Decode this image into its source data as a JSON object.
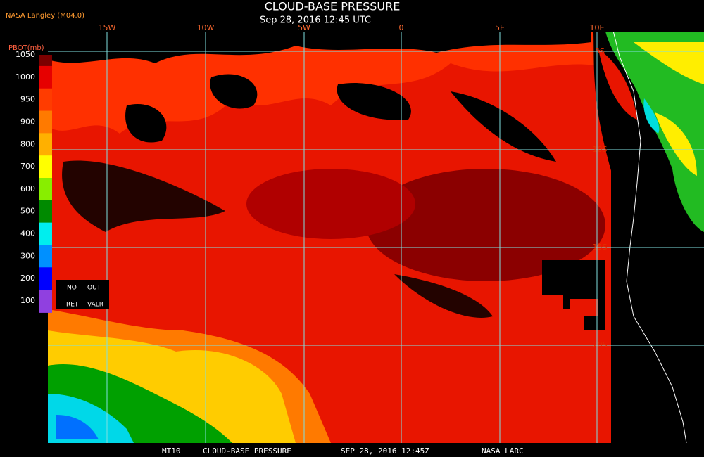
{
  "header": {
    "source": "NASA Langley (M04.0)",
    "title": "CLOUD-BASE PRESSURE",
    "subtitle": "Sep 28, 2016 12:45 UTC"
  },
  "legend": {
    "unit": "PBOT(mb)",
    "levels": [
      "1050",
      "1000",
      "950",
      "900",
      "800",
      "700",
      "600",
      "500",
      "400",
      "300",
      "200",
      "100"
    ],
    "colors": [
      "#7a0000",
      "#e60000",
      "#ff3c00",
      "#ff7a00",
      "#ffb000",
      "#ffff00",
      "#88ee00",
      "#008a00",
      "#00eeee",
      "#0090ff",
      "#0000ff",
      "#9040e0"
    ],
    "no_data": [
      "NO",
      "OUT",
      "RET",
      "VALR"
    ]
  },
  "map": {
    "lon_labels": [
      "15W",
      "10W",
      "5W",
      "0",
      "5E",
      "10E"
    ],
    "lat_labels": [
      "5S",
      "10S",
      "15S",
      "20S"
    ]
  },
  "footer": [
    "MT10",
    "CLOUD-BASE PRESSURE",
    "SEP 28, 2016 12:45Z",
    "NASA LARC"
  ]
}
